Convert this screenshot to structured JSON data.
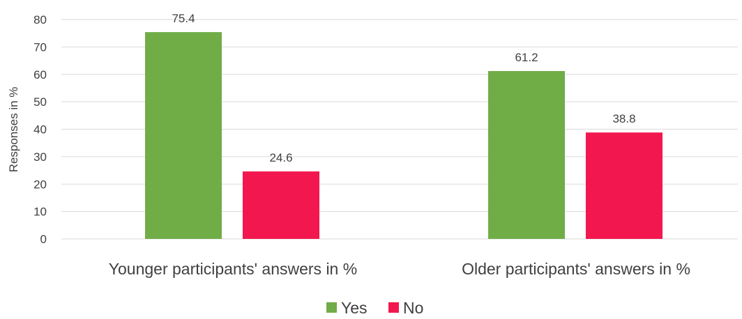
{
  "chart_data": {
    "type": "bar",
    "categories": [
      "Younger participants' answers in %",
      "Older participants' answers in %"
    ],
    "series": [
      {
        "name": "Yes",
        "values": [
          75.4,
          61.2
        ],
        "color": "#70ad47"
      },
      {
        "name": "No",
        "values": [
          24.6,
          38.8
        ],
        "color": "#f3174f"
      }
    ],
    "data_labels": [
      [
        "75.4",
        "61.2"
      ],
      [
        "24.6",
        "38.8"
      ]
    ],
    "title": "",
    "xlabel": "",
    "ylabel": "Responses in %",
    "ylim": [
      0,
      80
    ],
    "yticks": [
      0,
      10,
      20,
      30,
      40,
      50,
      60,
      70,
      80
    ],
    "grid": "horizontal",
    "legend_position": "bottom"
  }
}
